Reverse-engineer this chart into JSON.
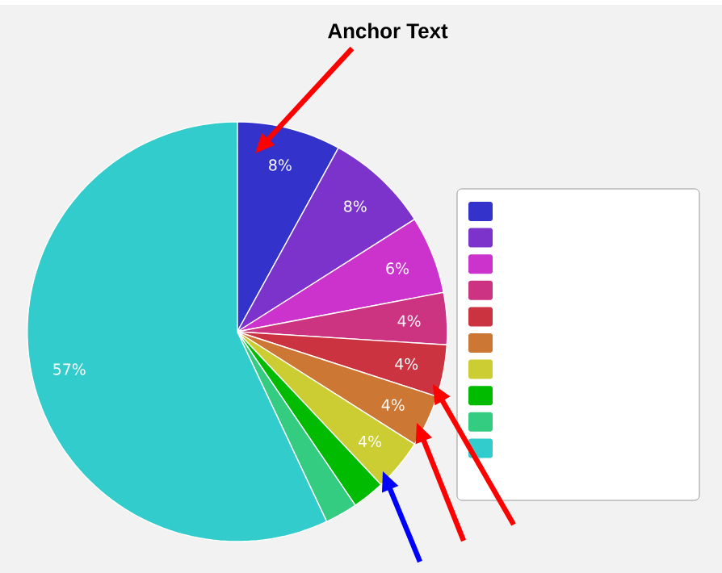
{
  "chart_data": {
    "type": "pie",
    "title": "Anchor Text",
    "categories": [
      null,
      null,
      null,
      null,
      null,
      null,
      null,
      null,
      null,
      null
    ],
    "values": [
      8,
      8,
      6,
      4,
      4,
      4,
      4,
      2.5,
      2.5,
      57
    ],
    "value_labels": [
      "8%",
      "8%",
      "6%",
      "4%",
      "4%",
      "4%",
      "4%",
      null,
      null,
      "57%"
    ],
    "colors": [
      "#3333cc",
      "#7b33cc",
      "#cc33cc",
      "#cc3380",
      "#cc3340",
      "#cc7733",
      "#cccc33",
      "#00bb00",
      "#33cc80",
      "#33cccc"
    ]
  }
}
